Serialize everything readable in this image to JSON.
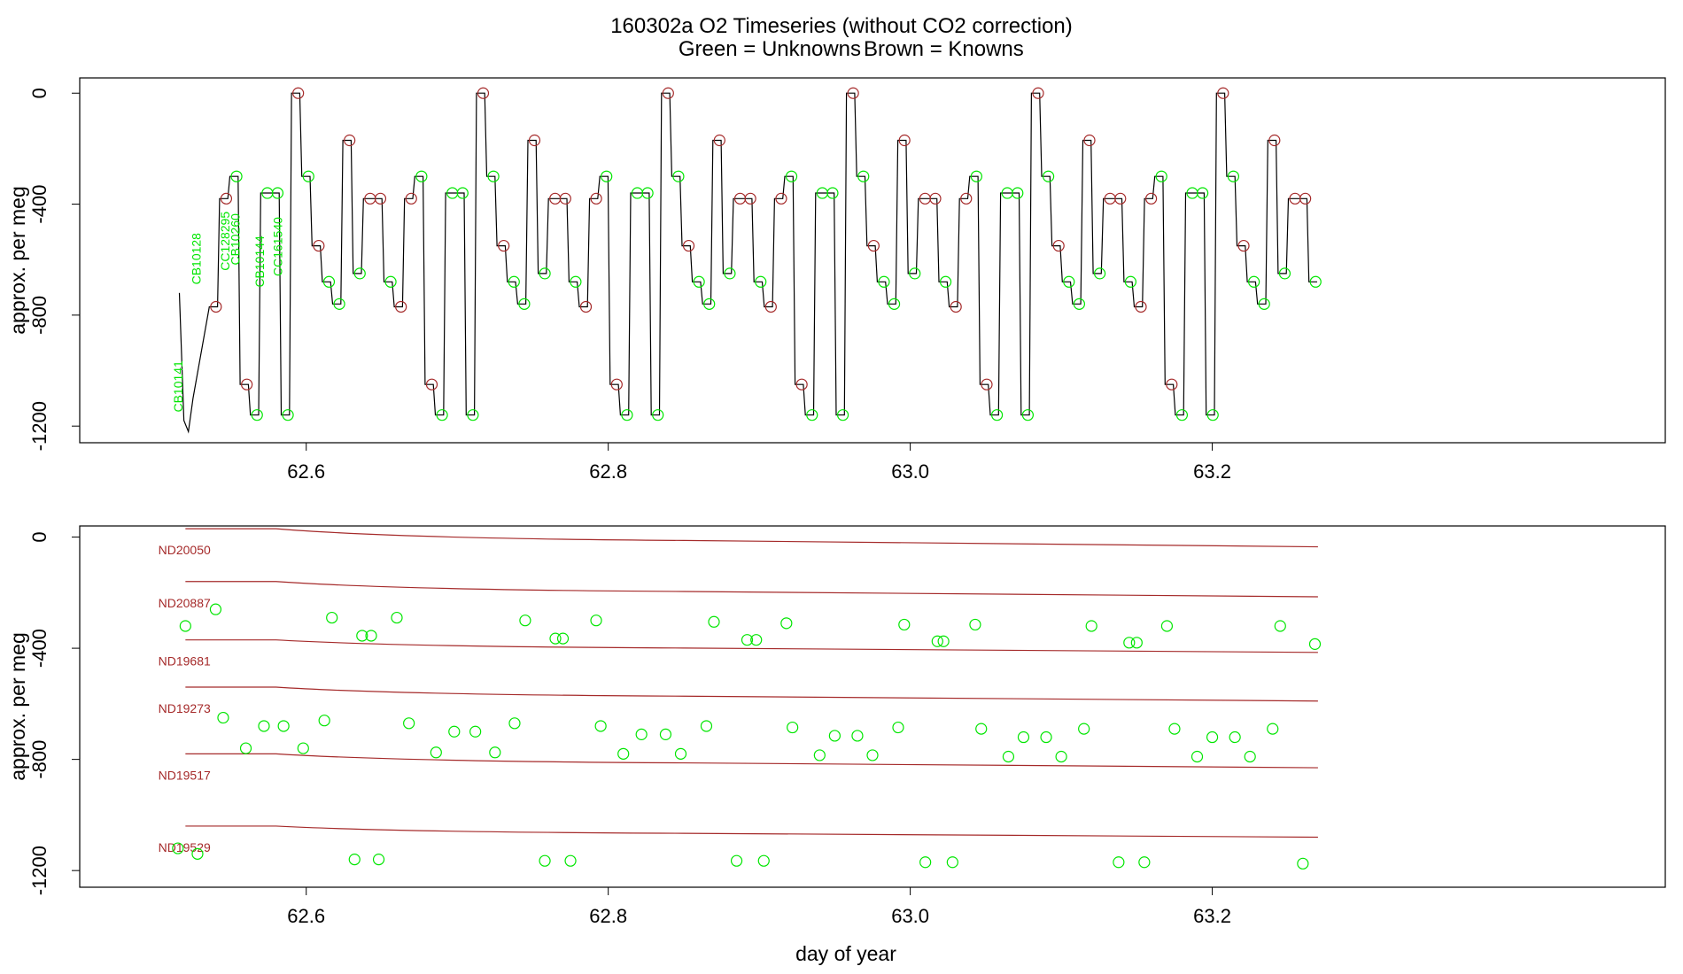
{
  "title": {
    "main": "160302a   O2 Timeseries (without CO2 correction)",
    "legend_unknowns": "Green = Unknowns",
    "legend_knowns": "Brown = Knowns"
  },
  "colors": {
    "unknown": "#00e600",
    "known": "#a52a2a",
    "trace": "#000000"
  },
  "chart_data": [
    {
      "type": "line",
      "panel": "top",
      "xlabel": "",
      "ylabel": "approx. per meg",
      "xlim": [
        62.45,
        63.5
      ],
      "ylim": [
        -1260,
        55
      ],
      "x_ticks": [
        "62.6",
        "62.8",
        "63.0",
        "63.2"
      ],
      "y_ticks": [
        "0",
        "-400",
        "-800",
        "-1200"
      ],
      "known_levels": [
        0,
        -170,
        -380,
        -550,
        -770,
        -1050
      ],
      "unknown_levels": [
        -300,
        -360,
        -650,
        -680,
        -760,
        -1160
      ],
      "standards": [
        {
          "name": "CB10141",
          "x": 62.518,
          "y": -1150
        },
        {
          "name": "CB10128",
          "x": 62.53,
          "y": -690
        },
        {
          "name": "CC128295",
          "x": 62.549,
          "y": -640
        },
        {
          "name": "CB10260",
          "x": 62.556,
          "y": -620
        },
        {
          "name": "CB10144",
          "x": 62.572,
          "y": -700
        },
        {
          "name": "CC161540",
          "x": 62.584,
          "y": -660
        }
      ],
      "cycle": {
        "start": 62.535,
        "period": 0.1225,
        "end": 63.265
      }
    },
    {
      "type": "scatter",
      "panel": "bottom",
      "xlabel": "day of year",
      "ylabel": "approx. per meg",
      "xlim": [
        62.45,
        63.5
      ],
      "ylim": [
        -1260,
        40
      ],
      "x_ticks": [
        "62.6",
        "62.8",
        "63.0",
        "63.2"
      ],
      "y_ticks": [
        "0",
        "-400",
        "-800",
        "-1200"
      ],
      "reference_lines": [
        {
          "name": "ND20050",
          "start": 30,
          "end": -35
        },
        {
          "name": "ND20887",
          "start": -160,
          "end": -215
        },
        {
          "name": "ND19681",
          "start": -370,
          "end": -415
        },
        {
          "name": "ND19273",
          "start": -540,
          "end": -590
        },
        {
          "name": "ND19517",
          "start": -780,
          "end": -830
        },
        {
          "name": "ND19529",
          "start": -1040,
          "end": -1080
        }
      ],
      "unknowns": [
        [
          62.515,
          -1120
        ],
        [
          62.52,
          -320
        ],
        [
          62.528,
          -1140
        ],
        [
          62.54,
          -260
        ],
        [
          62.545,
          -650
        ],
        [
          62.56,
          -760
        ],
        [
          62.572,
          -680
        ],
        [
          62.585,
          -680
        ],
        [
          62.598,
          -760
        ],
        [
          62.612,
          -660
        ],
        [
          62.632,
          -1160
        ],
        [
          62.617,
          -290
        ],
        [
          62.637,
          -355
        ],
        [
          62.643,
          -355
        ],
        [
          62.648,
          -1160
        ],
        [
          62.66,
          -290
        ],
        [
          62.668,
          -670
        ],
        [
          62.686,
          -775
        ],
        [
          62.698,
          -700
        ],
        [
          62.712,
          -700
        ],
        [
          62.725,
          -775
        ],
        [
          62.738,
          -670
        ],
        [
          62.745,
          -300
        ],
        [
          62.758,
          -1165
        ],
        [
          62.765,
          -365
        ],
        [
          62.77,
          -365
        ],
        [
          62.775,
          -1165
        ],
        [
          62.792,
          -300
        ],
        [
          62.795,
          -680
        ],
        [
          62.81,
          -780
        ],
        [
          62.822,
          -710
        ],
        [
          62.838,
          -710
        ],
        [
          62.848,
          -780
        ],
        [
          62.865,
          -680
        ],
        [
          62.87,
          -305
        ],
        [
          62.885,
          -1165
        ],
        [
          62.892,
          -370
        ],
        [
          62.898,
          -370
        ],
        [
          62.903,
          -1165
        ],
        [
          62.918,
          -310
        ],
        [
          62.922,
          -685
        ],
        [
          62.94,
          -785
        ],
        [
          62.95,
          -715
        ],
        [
          62.965,
          -715
        ],
        [
          62.975,
          -785
        ],
        [
          62.992,
          -685
        ],
        [
          62.996,
          -315
        ],
        [
          63.01,
          -1170
        ],
        [
          63.018,
          -375
        ],
        [
          63.022,
          -375
        ],
        [
          63.028,
          -1170
        ],
        [
          63.043,
          -315
        ],
        [
          63.047,
          -690
        ],
        [
          63.065,
          -790
        ],
        [
          63.075,
          -720
        ],
        [
          63.09,
          -720
        ],
        [
          63.1,
          -790
        ],
        [
          63.115,
          -690
        ],
        [
          63.12,
          -320
        ],
        [
          63.138,
          -1170
        ],
        [
          63.145,
          -380
        ],
        [
          63.15,
          -380
        ],
        [
          63.155,
          -1170
        ],
        [
          63.17,
          -320
        ],
        [
          63.175,
          -690
        ],
        [
          63.19,
          -790
        ],
        [
          63.2,
          -720
        ],
        [
          63.215,
          -720
        ],
        [
          63.225,
          -790
        ],
        [
          63.24,
          -690
        ],
        [
          63.245,
          -320
        ],
        [
          63.26,
          -1175
        ],
        [
          63.268,
          -385
        ]
      ]
    }
  ]
}
